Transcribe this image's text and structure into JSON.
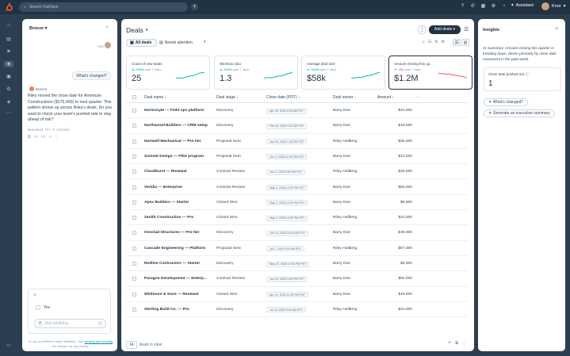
{
  "topbar": {
    "search_placeholder": "Search HubSpot",
    "assistant_label": "Assistant",
    "user_name": "Kroo"
  },
  "breeze": {
    "title": "Breeze",
    "you_label": "You",
    "user_message": "What's changed?",
    "agent_name": "Breeze",
    "reply": "Riley moved the close date for American Constructions ($175,000) to next quarter. This pattern shows up across Riley's deals. Do you want to check your team's pushed rate to stay ahead of risk?",
    "reasoned": "Reasoned for 4 seconds",
    "option_yes": "Yes",
    "ask_placeholder": "Ask anything...",
    "disclaimer_pre": "AI can sometimes make mistakes. Your ",
    "disclaimer_link": "privacy and security",
    "disclaimer_post": " are always our top priority."
  },
  "main": {
    "title": "Deals",
    "add_button": "Add deals",
    "views": [
      "All deals",
      "Needs attention"
    ],
    "kpis": [
      {
        "label": "Count of new deals",
        "delta": "+12%",
        "period": "past 7 days",
        "value": "25",
        "direction": "up",
        "trend": [
          0.3,
          0.35,
          0.32,
          0.45,
          0.5,
          0.55,
          0.7,
          0.8,
          0.85
        ]
      },
      {
        "label": "Win/loss ratio",
        "delta": "+12%",
        "period": "past 7 days",
        "value": "1.3",
        "direction": "up",
        "trend": [
          0.3,
          0.38,
          0.35,
          0.42,
          0.5,
          0.52,
          0.65,
          0.75,
          0.82
        ]
      },
      {
        "label": "Average deal size",
        "delta": "+12%",
        "period": "past 7 days",
        "value": "$58k",
        "direction": "up",
        "trend": [
          0.3,
          0.34,
          0.4,
          0.38,
          0.5,
          0.56,
          0.62,
          0.75,
          0.85
        ]
      },
      {
        "label": "Amount closing this qu...",
        "delta": "-3%",
        "period": "past 7 days",
        "value": "$1.2M",
        "direction": "down",
        "trend": [
          0.75,
          0.72,
          0.68,
          0.7,
          0.6,
          0.55,
          0.5,
          0.45,
          0.35
        ]
      }
    ],
    "columns": [
      "Deal name",
      "Deal stage",
      "Close date (PDT)",
      "Deal owner",
      "Amount"
    ],
    "rows": [
      {
        "name": "Horizonyte — Field ops platform",
        "stage": "Discovery",
        "date": "Apr 28, 2026 9:32 AM PST",
        "owner": "Barry Doe",
        "amount": "$42,000"
      },
      {
        "name": "Northwood Builders — CRM setup",
        "stage": "Discovery",
        "date": "Feb 28, 2026 9:32 AM PST",
        "owner": "Barry Doe",
        "amount": "$18,000"
      },
      {
        "name": "Hartwell Mechanical — Pro tier",
        "stage": "Proposal Sent",
        "date": "Jan 29, 2026 7:35 PM PST",
        "owner": "Riley Hullberg",
        "amount": "$35,000"
      },
      {
        "name": "Summit Design — Pilot program",
        "stage": "Proposal Sent",
        "date": "Jun 2, 2026 12:00 PM PST",
        "owner": "Barry Doe",
        "amount": "$12,000"
      },
      {
        "name": "Cloudburst — Renewal",
        "stage": "Contract Review",
        "date": "Jan 2, 2026 3:03 PM PST",
        "owner": "Riley Hullberg",
        "amount": "$28,000"
      },
      {
        "name": "Veridia — Enterprise",
        "stage": "Contract Review",
        "date": "May 2, 2026 12:00 PM PST",
        "owner": "Barry Doe",
        "amount": "$55,000"
      },
      {
        "name": "Apex Builders — Starter",
        "stage": "Closed Won",
        "date": "May 2, 2026 12:00 PM PST",
        "owner": "Barry Doe",
        "amount": "$8,500"
      },
      {
        "name": "Zenith Construction — Pro",
        "stage": "Closed Won",
        "date": "May 2, 2026 12:00 PM PST",
        "owner": "Riley Hullberg",
        "amount": "$22,000"
      },
      {
        "name": "Ironclad Structures — Pro tier",
        "stage": "Discovery",
        "date": "Jun 15, 2026 10:00 AM PST",
        "owner": "Barry Doe",
        "amount": "$38,000"
      },
      {
        "name": "Cascade Engineering — Platform",
        "stage": "Proposal Sent",
        "date": "Jul 1, 2026 9:00 AM PST",
        "owner": "Riley Hullberg",
        "amount": "$67,000"
      },
      {
        "name": "Redline Contractors — Starter",
        "stage": "Discovery",
        "date": "May 20, 2026 12:00 PM PST",
        "owner": "Barry Doe",
        "amount": "$9,500"
      },
      {
        "name": "Paragon Development — Enterp...",
        "stage": "Contract Review",
        "date": "Jun 20, 2026 3:00 PM PST",
        "owner": "Barry Doe",
        "amount": "$92,000"
      },
      {
        "name": "Whitmore & Sons — Renewal",
        "stage": "Closed Won",
        "date": "Apr 15, 2026 12:00 PM PST",
        "owner": "Barry Doe",
        "amount": "$15,500"
      },
      {
        "name": "Sterling Build Co. — Pro",
        "stage": "Discovery",
        "date": "Jul 15, 2026 9:00 AM PST",
        "owner": "Riley Hullberg",
        "amount": "$31,000"
      }
    ],
    "footer_count": "14",
    "footer_label": "deals in view"
  },
  "insights": {
    "title": "Insights",
    "summary": "AI Summary: Amount closing this quarter is trending down, driven primarily by close date movement in the past week.",
    "card_label": "Close date pushed out",
    "card_value": "1",
    "btn_changed": "What's changed?",
    "btn_summary": "Generate an executive summary"
  },
  "colors": {
    "accent": "#213343",
    "brand": "#ff5c35",
    "up": "#00bda5",
    "down": "#f2545b"
  }
}
